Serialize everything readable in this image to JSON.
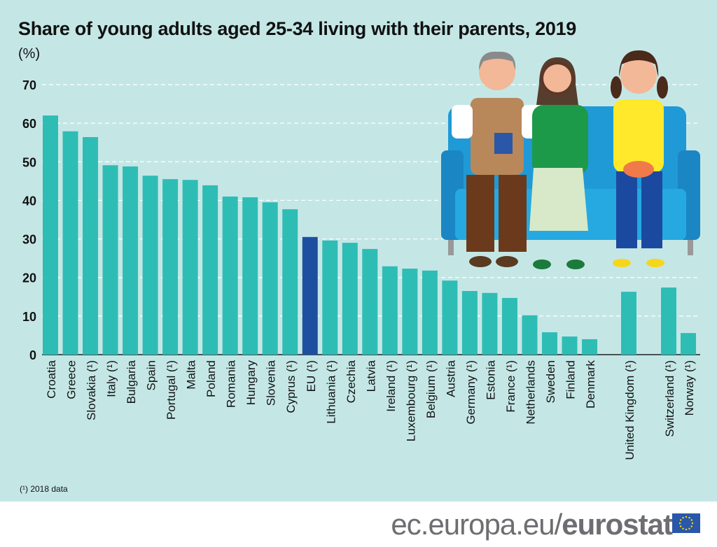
{
  "chart_data": {
    "type": "bar",
    "title": "Share of young adults aged 25-34 living with their parents, 2019",
    "ylabel": "(%)",
    "ylim": [
      0,
      70
    ],
    "yticks": [
      0,
      10,
      20,
      30,
      40,
      50,
      60,
      70
    ],
    "grid": true,
    "categories": [
      "Croatia",
      "Greece",
      "Slovakia (¹)",
      "Italy (¹)",
      "Bulgaria",
      "Spain",
      "Portugal (¹)",
      "Malta",
      "Poland",
      "Romania",
      "Hungary",
      "Slovenia",
      "Cyprus (¹)",
      "EU (¹)",
      "Lithuania (¹)",
      "Czechia",
      "Latvia",
      "Ireland (¹)",
      "Luxembourg (¹)",
      "Belgium (¹)",
      "Austria",
      "Germany (¹)",
      "Estonia",
      "France (¹)",
      "Netherlands",
      "Sweden",
      "Finland",
      "Denmark",
      "United Kingdom (¹)",
      "Switzerland (¹)",
      "Norway (¹)"
    ],
    "values": [
      62.0,
      57.9,
      56.4,
      49.1,
      48.8,
      46.4,
      45.5,
      45.3,
      43.9,
      41.0,
      40.8,
      39.5,
      37.7,
      30.5,
      29.6,
      29.0,
      27.4,
      22.9,
      22.3,
      21.8,
      19.2,
      16.5,
      16.0,
      14.7,
      10.2,
      5.8,
      4.7,
      4.0,
      16.3,
      17.4,
      5.6
    ],
    "highlight": "EU (¹)",
    "colors": {
      "bar": "#2ebdb5",
      "highlight": "#1d4fa0",
      "background": "#c4e7e6"
    }
  },
  "footnote": "(¹) 2018 data",
  "brand": {
    "prefix": "ec.europa.eu/",
    "name": "eurostat"
  }
}
